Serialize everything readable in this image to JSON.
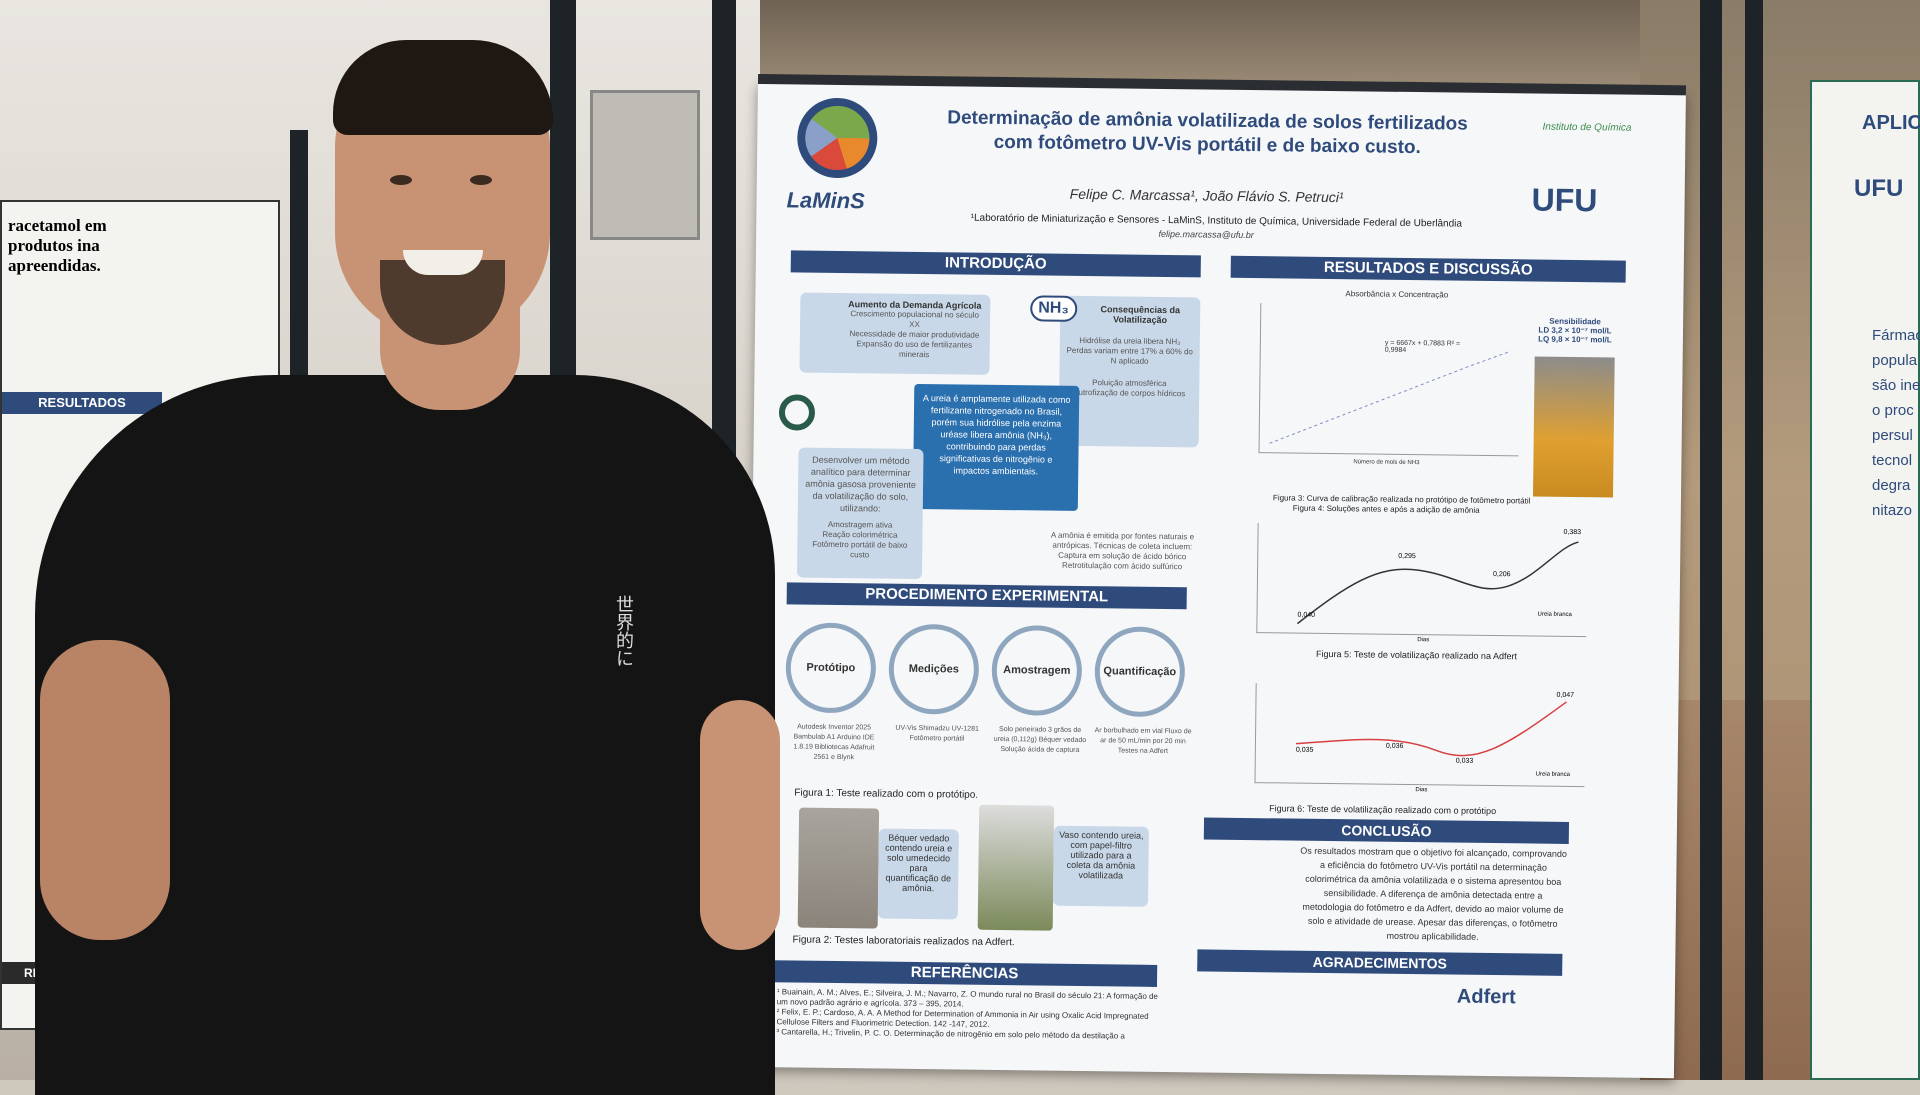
{
  "poster": {
    "title_line1": "Determinação de amônia volatilizada de solos fertilizados",
    "title_line2": "com fotômetro UV-Vis portátil e de baixo custo.",
    "authors": "Felipe C. Marcassa¹, João Flávio S. Petruci¹",
    "affiliation": "¹Laboratório de Miniaturização e Sensores - LaMinS, Instituto de Química, Universidade Federal de Uberlândia",
    "email": "felipe.marcassa@ufu.br",
    "logo_lamins": "LaMinS",
    "logo_ufu": "UFU",
    "logo_iq": "Instituto de Química",
    "sections": {
      "intro": "INTRODUÇÃO",
      "results": "RESULTADOS E DISCUSSÃO",
      "procedure": "PROCEDIMENTO EXPERIMENTAL",
      "references": "REFERÊNCIAS",
      "conclusion": "CONCLUSÃO",
      "acknowledgements": "AGRADECIMENTOS"
    },
    "intro": {
      "demand_title": "Aumento da Demanda Agrícola",
      "demand_items": [
        "Crescimento populacional no século XX",
        "Necessidade de maior produtividade",
        "Expansão do uso de fertilizantes minerais"
      ],
      "consequences_title": "Consequências da Volatilização",
      "consequences_items": [
        "Hidrólise da ureia libera NH₃",
        "Perdas variam entre 17% a 60% do N aplicado",
        "Poluição atmosférica",
        "Eutrofização de corpos hídricos"
      ],
      "nh3": "NH₃",
      "center_text": "A ureia é amplamente utilizada como fertilizante nitrogenado no Brasil, porém sua hidrólise pela enzima uréase libera amônia (NH₃), contribuindo para perdas significativas de nitrogênio e impactos ambientais.",
      "goal_text": "Desenvolver um método analítico para determinar amônia gasosa proveniente da volatilização do solo, utilizando:",
      "goal_items": [
        "Amostragem ativa",
        "Reação colorimétrica",
        "Fotômetro portátil de baixo custo"
      ],
      "emission_text": "A amônia é emitida por fontes naturais e antrópicas. Técnicas de coleta incluem:",
      "emission_items": [
        "Captura em solução de ácido bórico",
        "Retrotitulação com ácido sulfúrico"
      ]
    },
    "procedure": {
      "steps": [
        {
          "label": "Protótipo",
          "desc": "Autodesk Inventor 2025 Bambulab A1 Arduino IDE 1.8.19 Bibliotecas Adafruit 2561 e Blynk"
        },
        {
          "label": "Medições",
          "desc": "UV-Vis Shimadzu UV-1281 Fotômetro portátil"
        },
        {
          "label": "Amostragem",
          "desc": "Solo peneirado 3 grãos de ureia (0,112g) Béquer vedado Solução ácida de captura"
        },
        {
          "label": "Quantificação",
          "desc": "Ar borbulhado em vial Fluxo de ar de 50 mL/min por 20 min Testes na Adfert"
        }
      ],
      "fig1": "Figura 1: Teste realizado com o protótipo.",
      "photo1_caption": "Béquer vedado contendo ureia e solo umedecido para quantificação de amônia.",
      "photo2_caption": "Vaso contendo ureia, com papel-filtro utilizado para a coleta da amônia volatilizada",
      "fig2": "Figura 2: Testes laboratoriais realizados na Adfert."
    },
    "results": {
      "chart1_title": "Absorbância x Concentração",
      "equation": "y = 6667x + 0,7883  R² = 0,9984",
      "sensitivity": "Sensibilidade",
      "ld": "LD 3,2 × 10⁻⁷ mol/L",
      "lq": "LQ 9,8 × 10⁻⁷ mol/L",
      "chart1_xlabel": "Número de mols de NH3",
      "fig3": "Figura 3: Curva de calibração realizada no protótipo de fotômetro portátil",
      "fig4": "Figura 4: Soluções antes e após a adição de amônia",
      "chart2_labels": [
        "0,040",
        "0,295",
        "0,206",
        "0,383"
      ],
      "chart2_legend": "Ureia branca",
      "chart_xlabel": "Dias",
      "fig5": "Figura 5: Teste de volatilização realizado na Adfert",
      "chart3_labels": [
        "0,035",
        "0,036",
        "0,033",
        "0,047"
      ],
      "chart3_legend": "Ureia branca",
      "fig6": "Figura 6: Teste de volatilização realizado com o protótipo"
    },
    "conclusion": "Os resultados mostram que o objetivo foi alcançado, comprovando a eficiência do fotômetro UV-Vis portátil na determinação colorimétrica da amônia volatilizada e o sistema apresentou boa sensibilidade. A diferença de amônia detectada entre a metodologia do fotômetro e da Adfert, devido ao maior volume de solo e atividade de urease. Apesar das diferenças, o fotômetro mostrou aplicabilidade.",
    "references": [
      "¹ Buainain, A. M.; Alves, E.; Silveira, J. M.; Navarro, Z. O mundo rural no Brasil do século 21: A formação de um novo padrão agrário e agrícola. 373 – 395, 2014.",
      "² Felix, E. P.; Cardoso, A. A. A Method for Determination of Ammonia in Air using Oxalic Acid Impregnated Cellulose Filters and Fluorimetric Detection. 142 -147, 2012.",
      "³ Cantarella, H.; Trivelin, P. C. O. Determinação de nitrogênio em solo pelo método da destilação a"
    ],
    "ack_adfert": "Adfert"
  },
  "left_poster": {
    "title": "racetamol em produtos ina apreendidas.",
    "results": "RESULTADOS",
    "references": "REFERÊNCIAS"
  },
  "right_poster": {
    "title": "APLIC",
    "ufu": "UFU",
    "text": "Fármac popula são ine o proc persul tecnol degra nitazo"
  },
  "shirt_text": "世界的に"
}
